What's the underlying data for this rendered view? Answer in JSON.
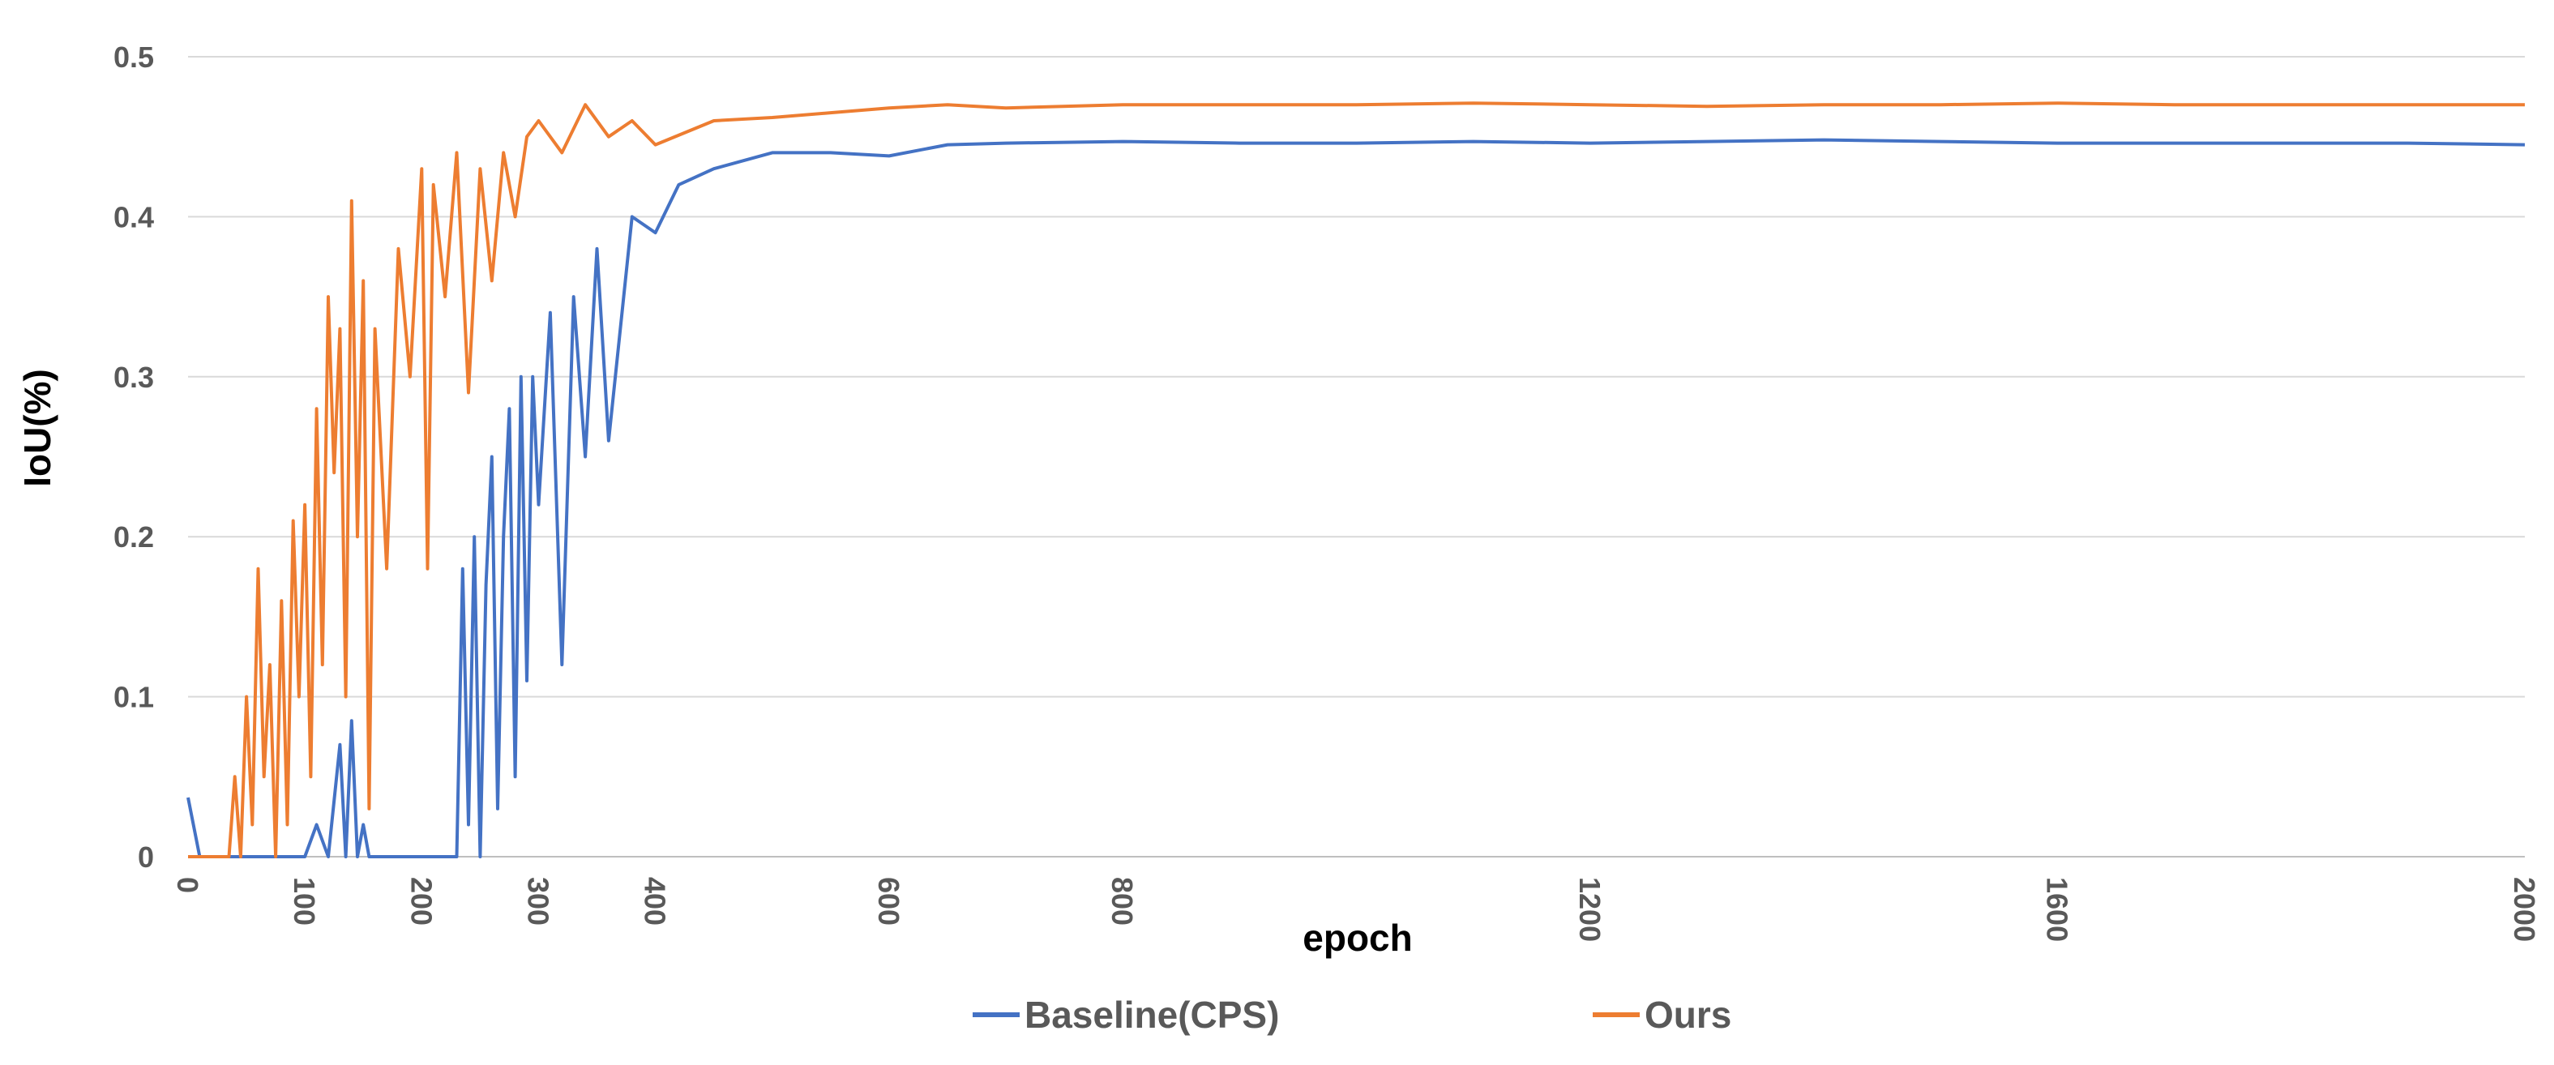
{
  "chart_data": {
    "type": "line",
    "xlabel": "epoch",
    "ylabel": "IoU(%)",
    "title": "",
    "xlim": [
      0,
      2000
    ],
    "ylim": [
      0,
      0.5
    ],
    "x_ticks": [
      "0",
      "100",
      "200",
      "300",
      "400",
      "600",
      "800",
      "1200",
      "1600",
      "2000"
    ],
    "y_ticks": [
      "0",
      "0.1",
      "0.2",
      "0.3",
      "0.4",
      "0.5"
    ],
    "grid": "horizontal",
    "legend_position": "bottom",
    "colors": {
      "baseline": "#4472C4",
      "ours": "#ED7D31",
      "grid": "#D9D9D9",
      "axis": "#BFBFBF"
    },
    "series": [
      {
        "name": "Baseline(CPS)",
        "x": [
          0,
          10,
          20,
          40,
          60,
          80,
          100,
          110,
          120,
          130,
          135,
          140,
          145,
          150,
          155,
          160,
          170,
          200,
          230,
          235,
          240,
          245,
          250,
          255,
          260,
          265,
          270,
          275,
          280,
          285,
          290,
          295,
          300,
          310,
          320,
          330,
          340,
          350,
          360,
          380,
          400,
          420,
          450,
          500,
          550,
          600,
          650,
          700,
          800,
          900,
          1000,
          1100,
          1200,
          1300,
          1400,
          1500,
          1600,
          1700,
          1800,
          1900,
          2000
        ],
        "values": [
          0.037,
          0,
          0,
          0,
          0,
          0,
          0,
          0.02,
          0,
          0.07,
          0,
          0.085,
          0,
          0.02,
          0,
          0,
          0,
          0,
          0,
          0.18,
          0.02,
          0.2,
          0,
          0.17,
          0.25,
          0.03,
          0.2,
          0.28,
          0.05,
          0.3,
          0.11,
          0.3,
          0.22,
          0.34,
          0.12,
          0.35,
          0.25,
          0.38,
          0.26,
          0.4,
          0.39,
          0.42,
          0.43,
          0.44,
          0.44,
          0.438,
          0.445,
          0.446,
          0.447,
          0.446,
          0.446,
          0.447,
          0.446,
          0.447,
          0.448,
          0.447,
          0.446,
          0.446,
          0.446,
          0.446,
          0.445
        ]
      },
      {
        "name": "Ours",
        "x": [
          0,
          20,
          35,
          40,
          45,
          50,
          55,
          60,
          65,
          70,
          75,
          80,
          85,
          90,
          95,
          100,
          105,
          110,
          115,
          120,
          125,
          130,
          135,
          140,
          145,
          150,
          155,
          160,
          170,
          180,
          190,
          200,
          205,
          210,
          220,
          230,
          240,
          250,
          260,
          270,
          280,
          290,
          300,
          320,
          340,
          360,
          380,
          400,
          450,
          500,
          550,
          600,
          650,
          700,
          800,
          900,
          1000,
          1100,
          1200,
          1300,
          1400,
          1500,
          1600,
          1700,
          1800,
          1900,
          2000
        ],
        "values": [
          0,
          0,
          0,
          0.05,
          0,
          0.1,
          0.02,
          0.18,
          0.05,
          0.12,
          0,
          0.16,
          0.02,
          0.21,
          0.1,
          0.22,
          0.05,
          0.28,
          0.12,
          0.35,
          0.24,
          0.33,
          0.1,
          0.41,
          0.2,
          0.36,
          0.03,
          0.33,
          0.18,
          0.38,
          0.3,
          0.43,
          0.18,
          0.42,
          0.35,
          0.44,
          0.29,
          0.43,
          0.36,
          0.44,
          0.4,
          0.45,
          0.46,
          0.44,
          0.47,
          0.45,
          0.46,
          0.445,
          0.46,
          0.462,
          0.465,
          0.468,
          0.47,
          0.468,
          0.47,
          0.47,
          0.47,
          0.471,
          0.47,
          0.469,
          0.47,
          0.47,
          0.471,
          0.47,
          0.47,
          0.47,
          0.47
        ]
      }
    ]
  }
}
